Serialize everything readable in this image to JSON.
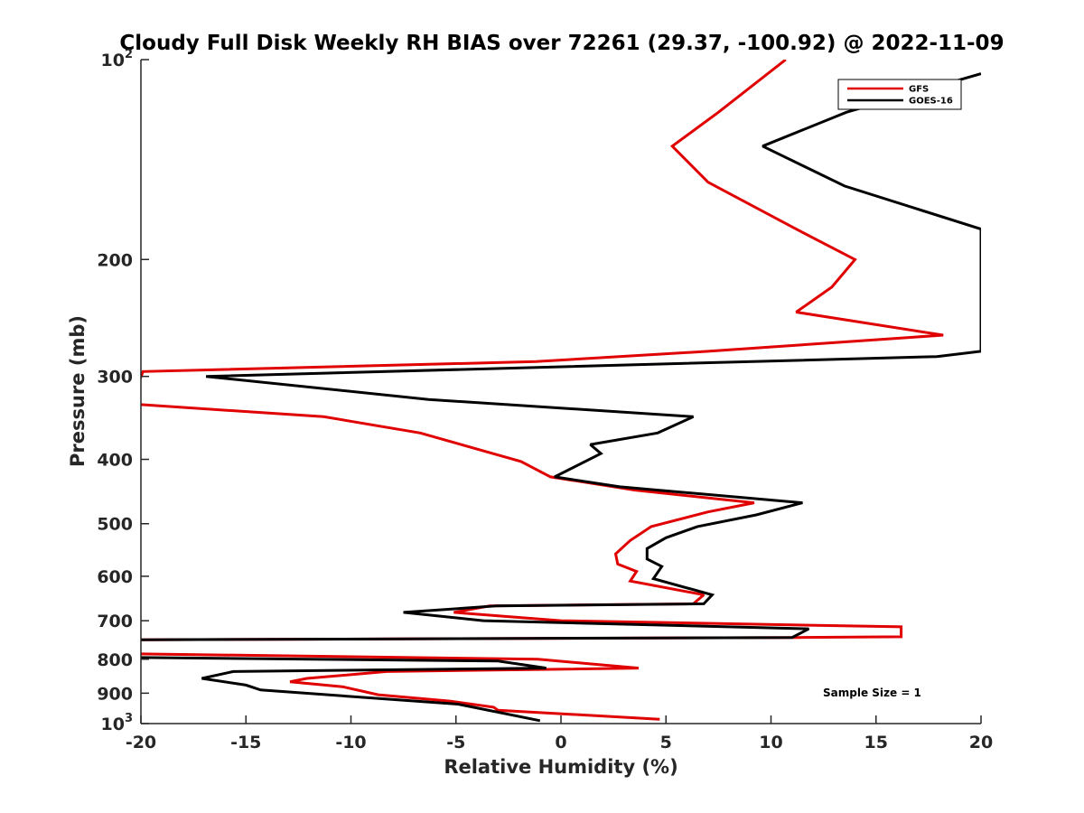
{
  "chart_data": {
    "type": "line",
    "title": "Cloudy Full Disk Weekly RH BIAS over 72261 (29.37, -100.92) @ 2022-11-09",
    "xlabel": "Relative Humidity (%)",
    "ylabel": "Pressure (mb)",
    "xlim": [
      -20,
      20
    ],
    "ylim": [
      100,
      1000
    ],
    "y_scale": "log",
    "y_reversed": true,
    "grid": false,
    "legend_position": "top-right",
    "annotation": "Sample Size = 1",
    "x_ticks": [
      -20,
      -15,
      -10,
      -5,
      0,
      5,
      10,
      15,
      20
    ],
    "x_tick_labels": [
      "-20",
      "-15",
      "-10",
      "-5",
      "0",
      "5",
      "10",
      "15",
      "20"
    ],
    "y_ticks": [
      {
        "value": 100,
        "base": "10",
        "exp": "2"
      },
      {
        "value": 200,
        "label": "200"
      },
      {
        "value": 300,
        "label": "300"
      },
      {
        "value": 400,
        "label": "400"
      },
      {
        "value": 500,
        "label": "500"
      },
      {
        "value": 600,
        "label": "600"
      },
      {
        "value": 700,
        "label": "700"
      },
      {
        "value": 800,
        "label": "800"
      },
      {
        "value": 900,
        "label": "900"
      },
      {
        "value": 1000,
        "base": "10",
        "exp": "3"
      }
    ],
    "series": [
      {
        "name": "GFS",
        "color": "#e00000",
        "points": [
          [
            10.7,
            100
          ],
          [
            7.5,
            120
          ],
          [
            5.3,
            135
          ],
          [
            7.0,
            153
          ],
          [
            11.2,
            180
          ],
          [
            14.0,
            200
          ],
          [
            12.9,
            220
          ],
          [
            11.2,
            240
          ],
          [
            18.2,
            260
          ],
          [
            7.0,
            275
          ],
          [
            -1.2,
            285
          ],
          [
            -19.9,
            295
          ],
          [
            -20.5,
            330
          ],
          [
            -11.3,
            345
          ],
          [
            -6.7,
            365
          ],
          [
            -1.9,
            403
          ],
          [
            -0.5,
            425
          ],
          [
            3.5,
            445
          ],
          [
            9.2,
            465
          ],
          [
            7.0,
            480
          ],
          [
            4.3,
            505
          ],
          [
            3.3,
            530
          ],
          [
            2.6,
            555
          ],
          [
            2.7,
            575
          ],
          [
            3.6,
            590
          ],
          [
            3.3,
            610
          ],
          [
            6.8,
            640
          ],
          [
            6.3,
            660
          ],
          [
            -3.4,
            665
          ],
          [
            -5.1,
            680
          ],
          [
            0.0,
            700
          ],
          [
            16.2,
            715
          ],
          [
            16.2,
            740
          ],
          [
            11.3,
            742
          ],
          [
            -20.3,
            748
          ],
          [
            -20.5,
            785
          ],
          [
            -1.1,
            800
          ],
          [
            3.7,
            825
          ],
          [
            -8.3,
            835
          ],
          [
            -12.1,
            855
          ],
          [
            -12.9,
            865
          ],
          [
            -10.4,
            880
          ],
          [
            -8.7,
            905
          ],
          [
            -5.3,
            925
          ],
          [
            -3.2,
            945
          ],
          [
            -3.0,
            955
          ],
          [
            4.7,
            985
          ]
        ]
      },
      {
        "name": "GOES-16",
        "color": "#000000",
        "points": [
          [
            20.0,
            105
          ],
          [
            13.6,
            120
          ],
          [
            9.6,
            135
          ],
          [
            13.5,
            155
          ],
          [
            20.0,
            180
          ],
          [
            20.0,
            275
          ],
          [
            17.9,
            280
          ],
          [
            -16.9,
            300
          ],
          [
            -6.3,
            325
          ],
          [
            6.3,
            345
          ],
          [
            4.6,
            365
          ],
          [
            1.4,
            380
          ],
          [
            1.9,
            392
          ],
          [
            -0.3,
            425
          ],
          [
            2.8,
            440
          ],
          [
            11.5,
            465
          ],
          [
            9.3,
            485
          ],
          [
            6.5,
            505
          ],
          [
            5.0,
            525
          ],
          [
            4.1,
            545
          ],
          [
            4.1,
            565
          ],
          [
            4.8,
            580
          ],
          [
            4.4,
            605
          ],
          [
            7.2,
            640
          ],
          [
            6.8,
            660
          ],
          [
            -3.1,
            665
          ],
          [
            -7.5,
            680
          ],
          [
            -3.7,
            700
          ],
          [
            11.8,
            720
          ],
          [
            11.0,
            742
          ],
          [
            -20.5,
            748
          ],
          [
            -20.3,
            795
          ],
          [
            -3.0,
            805
          ],
          [
            -0.7,
            825
          ],
          [
            -15.6,
            835
          ],
          [
            -17.1,
            855
          ],
          [
            -15.0,
            875
          ],
          [
            -14.3,
            890
          ],
          [
            -4.9,
            935
          ],
          [
            -1.0,
            990
          ]
        ]
      }
    ]
  }
}
